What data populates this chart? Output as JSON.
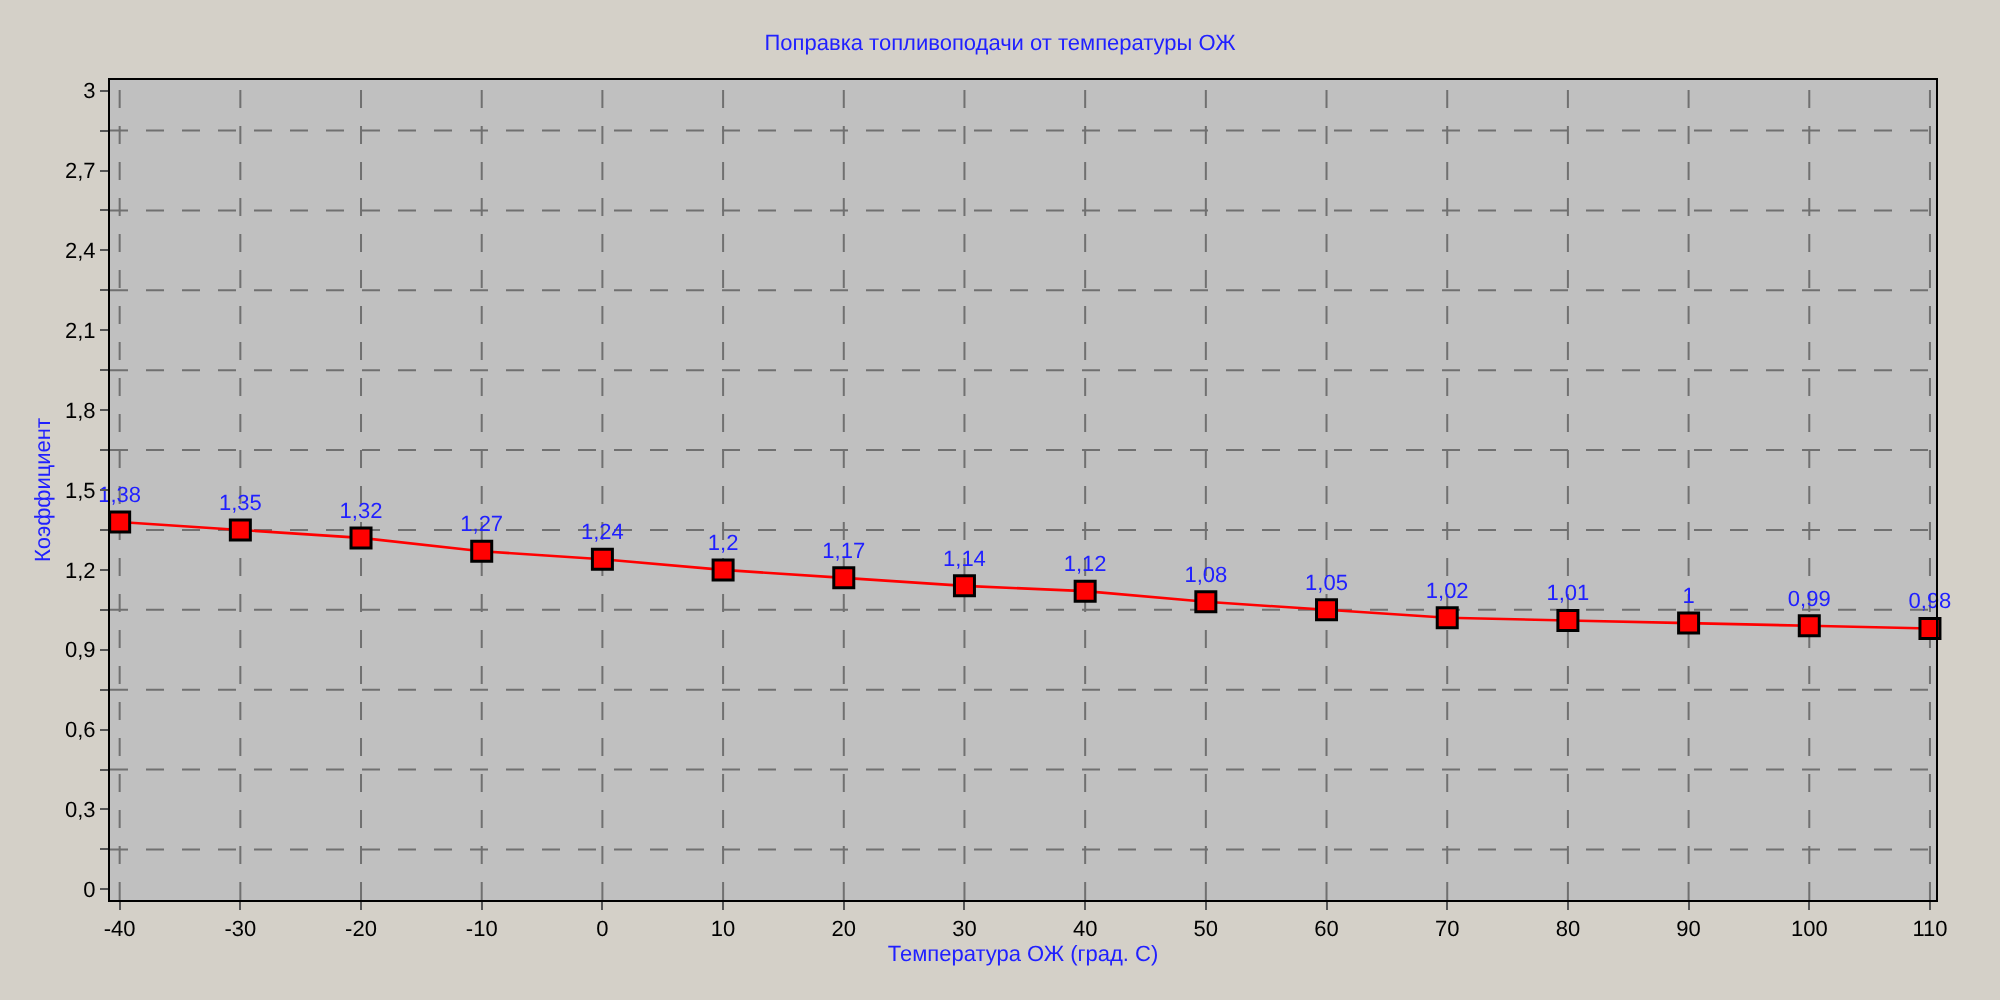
{
  "chart_data": {
    "type": "line",
    "title": "Поправка топливоподачи от температуры ОЖ",
    "xlabel": "Температура ОЖ (град. С)",
    "ylabel": "Коэффициент",
    "x": [
      -40,
      -30,
      -20,
      -10,
      0,
      10,
      20,
      30,
      40,
      50,
      60,
      70,
      80,
      90,
      100,
      110
    ],
    "series": [
      {
        "color": "#ff0000",
        "values": [
          1.38,
          1.35,
          1.32,
          1.27,
          1.24,
          1.2,
          1.17,
          1.14,
          1.12,
          1.08,
          1.05,
          1.02,
          1.01,
          1,
          0.99,
          0.98
        ],
        "value_labels": [
          "1,38",
          "1,35",
          "1,32",
          "1,27",
          "1,24",
          "1,2",
          "1,17",
          "1,14",
          "1,12",
          "1,08",
          "1,05",
          "1,02",
          "1,01",
          "1",
          "0,99",
          "0,98"
        ]
      }
    ],
    "xlim": [
      -40.8,
      110.5
    ],
    "ylim": [
      -0.04,
      3.04
    ],
    "xticks": [
      -40,
      -30,
      -20,
      -10,
      0,
      10,
      20,
      30,
      40,
      50,
      60,
      70,
      80,
      90,
      100,
      110
    ],
    "yticks": [
      0,
      {
        "value": 0.15,
        "label": null
      },
      {
        "value": 0.3,
        "label": "0,3"
      },
      {
        "value": 0.45,
        "label": null
      },
      {
        "value": 0.6,
        "label": "0,6"
      },
      {
        "value": 0.75,
        "label": null
      },
      {
        "value": 0.9,
        "label": "0,9"
      },
      {
        "value": 1.05,
        "label": null
      },
      {
        "value": 1.2,
        "label": "1,2"
      },
      {
        "value": 1.35,
        "label": null
      },
      {
        "value": 1.5,
        "label": "1,5"
      },
      {
        "value": 1.65,
        "label": null
      },
      {
        "value": 1.8,
        "label": "1,8"
      },
      {
        "value": 1.95,
        "label": null
      },
      {
        "value": 2.1,
        "label": "2,1"
      },
      {
        "value": 2.25,
        "label": null
      },
      {
        "value": 2.4,
        "label": "2,4"
      },
      {
        "value": 2.55,
        "label": null
      },
      {
        "value": 2.7,
        "label": "2,7"
      },
      {
        "value": 2.85,
        "label": null
      },
      3
    ],
    "grid": true,
    "marker": "square",
    "line_style": "solid"
  }
}
